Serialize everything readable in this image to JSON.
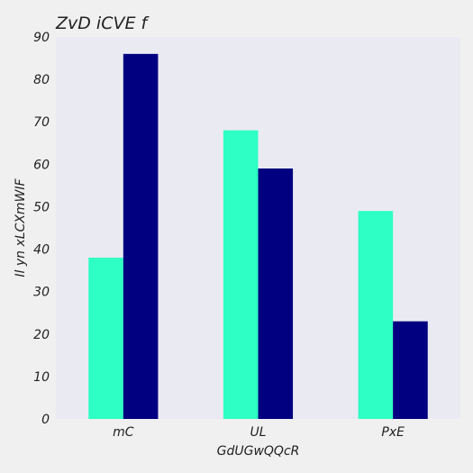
{
  "chart_data": {
    "type": "bar",
    "title": "ZvD iCVE f",
    "xlabel": "GdUGwQQcR",
    "ylabel": "Il yn xLCXmWIF",
    "categories": [
      "mC",
      "UL",
      "PxE"
    ],
    "series": [
      {
        "color": "#2effc4",
        "values": [
          38,
          68,
          49
        ]
      },
      {
        "color": "#000080",
        "values": [
          86,
          59,
          23
        ]
      }
    ],
    "ylim": [
      0,
      90
    ],
    "yticks": [
      0,
      10,
      20,
      30,
      40,
      50,
      60,
      70,
      80,
      90
    ],
    "grid": false,
    "legend": "none",
    "colors": {
      "page_background": "#f0f0f0",
      "plot_background": "#eaeaf2",
      "text": "#222222"
    }
  }
}
